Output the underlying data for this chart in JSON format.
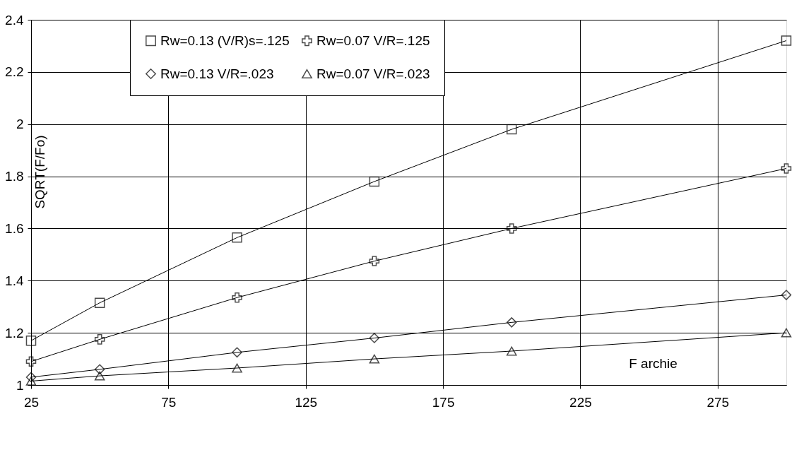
{
  "chart_data": {
    "type": "line",
    "xlabel": "F archie",
    "ylabel": "SQRT(F/Fo)",
    "x": [
      25,
      50,
      100,
      150,
      200,
      300
    ],
    "series": [
      {
        "name": "Rw=0.13 (V/R)s=.125",
        "color": "#000000",
        "marker": "square",
        "values": [
          1.17,
          1.315,
          1.565,
          1.78,
          1.98,
          2.32
        ]
      },
      {
        "name": "Rw=0.07 V/R=.125",
        "color": "#000000",
        "marker": "cross",
        "values": [
          1.09,
          1.175,
          1.335,
          1.475,
          1.6,
          1.83
        ]
      },
      {
        "name": "Rw=0.13 V/R=.023",
        "color": "#000000",
        "marker": "diamond",
        "values": [
          1.03,
          1.06,
          1.125,
          1.18,
          1.24,
          1.345
        ]
      },
      {
        "name": "Rw=0.07 V/R=.023",
        "color": "#000000",
        "marker": "triangle",
        "values": [
          1.015,
          1.035,
          1.065,
          1.1,
          1.13,
          1.2
        ]
      }
    ],
    "xlim": [
      25,
      300
    ],
    "xticks": [
      25,
      75,
      125,
      175,
      225,
      275
    ],
    "ylim": [
      1,
      2.4
    ],
    "yticks": [
      1,
      1.2,
      1.4,
      1.6,
      1.8,
      2,
      2.2,
      2.4
    ],
    "grid": true,
    "legend": "top",
    "line_style": "solid"
  }
}
